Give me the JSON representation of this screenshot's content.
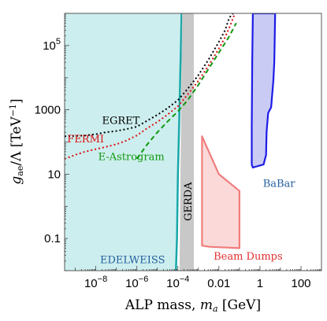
{
  "chart_data": {
    "type": "area",
    "xlabel": "ALP mass, m_a [GeV]",
    "ylabel": "g_ae/Λ [TeV⁻¹]",
    "xscale": "log",
    "yscale": "log",
    "xlim": [
      3e-10,
      1000
    ],
    "ylim": [
      0.01,
      1000000
    ],
    "grid": false,
    "x_ticks": [
      {
        "value": 1e-08,
        "label": "10",
        "exp": "−8"
      },
      {
        "value": 1e-06,
        "label": "10",
        "exp": "−6"
      },
      {
        "value": 0.0001,
        "label": "10",
        "exp": "−4"
      },
      {
        "value": 0.01,
        "label": "0.01",
        "exp": ""
      },
      {
        "value": 1,
        "label": "1",
        "exp": ""
      },
      {
        "value": 100,
        "label": "100",
        "exp": ""
      }
    ],
    "y_ticks": [
      {
        "value": 0.1,
        "label": "0.1",
        "exp": ""
      },
      {
        "value": 10,
        "label": "10",
        "exp": ""
      },
      {
        "value": 1000,
        "label": "1000",
        "exp": ""
      },
      {
        "value": 100000,
        "label": "10",
        "exp": "5"
      }
    ],
    "colors": {
      "edelweiss_fill": "#cdeeee",
      "edelweiss_line": "#17a7a9",
      "gerda_fill": "#c8c8c8",
      "babar_fill": "#c9cbf5",
      "babar_line": "#1c1ce6",
      "beam_fill": "#fbd9d9",
      "beam_line": "#f07d7d",
      "egret": "#000000",
      "fermi": "#dd1111",
      "astro": "#119911"
    },
    "regions": [
      {
        "name": "EDELWEISS",
        "label_x": 1.6e-08,
        "label_y": 0.017,
        "label_color": "#225e9e",
        "points": [
          [
            3e-10,
            0.01
          ],
          [
            3e-10,
            1000000
          ],
          [
            0.00015,
            1000000
          ],
          [
            0.00014,
            100000
          ],
          [
            0.00012,
            1000
          ],
          [
            0.0001,
            10
          ],
          [
            9e-05,
            0.1
          ],
          [
            8e-05,
            0.01
          ]
        ]
      },
      {
        "name": "GERDA",
        "label_x": 0.00045,
        "label_y": 0.35,
        "label_color": "#000000",
        "points": [
          [
            0.00012,
            0.01
          ],
          [
            0.00016,
            1000000
          ],
          [
            0.0006,
            1000000
          ],
          [
            0.0006,
            0.01
          ]
        ]
      },
      {
        "name": "BaBar",
        "label_x": 1.4,
        "label_y": 4,
        "label_color": "#225e9e",
        "points": [
          [
            0.45,
            1000000
          ],
          [
            0.42,
            30000
          ],
          [
            0.41,
            3000
          ],
          [
            0.4,
            300
          ],
          [
            0.4,
            20
          ],
          [
            0.45,
            16
          ],
          [
            0.6,
            17
          ],
          [
            1.5,
            20
          ],
          [
            2,
            40
          ],
          [
            2.1,
            200
          ],
          [
            2.5,
            800
          ],
          [
            3.5,
            1200
          ],
          [
            4.5,
            8000
          ],
          [
            5,
            30000
          ],
          [
            5.5,
            1000000
          ]
        ]
      },
      {
        "name": "Beam Dumps",
        "label_x": 0.0055,
        "label_y": 0.022,
        "label_color": "#e03030",
        "points": [
          [
            0.0015,
            150
          ],
          [
            0.0015,
            0.06
          ],
          [
            0.0035,
            0.055
          ],
          [
            0.1,
            0.05
          ],
          [
            0.1,
            3
          ],
          [
            0.01,
            10
          ]
        ]
      }
    ],
    "series": [
      {
        "name": "EGRET",
        "style": "dotted",
        "label_x": 2e-08,
        "label_y": 370,
        "x": [
          3e-10,
          3e-09,
          1e-08,
          3e-08,
          1e-07,
          3e-07,
          1e-06,
          3e-06,
          1e-05,
          3e-05,
          0.0001,
          0.0003,
          0.001,
          0.003,
          0.01,
          0.02,
          0.03,
          0.04,
          0.05
        ],
        "y": [
          150,
          160,
          175,
          200,
          220,
          250,
          300,
          450,
          700,
          1100,
          2000,
          4500,
          12000,
          35000,
          130000,
          300000,
          650000,
          900000,
          1000000
        ]
      },
      {
        "name": "FERMI",
        "style": "dotted",
        "label_x": 4e-10,
        "label_y": 98,
        "x": [
          3e-10,
          1e-09,
          3e-09,
          1e-08,
          3e-08,
          1e-07,
          3e-07,
          1e-06,
          3e-06,
          1e-05,
          3e-05,
          0.0001,
          0.0003,
          0.001,
          0.003,
          0.01,
          0.02,
          0.04,
          0.06
        ],
        "y": [
          30,
          40,
          50,
          60,
          70,
          85,
          110,
          160,
          260,
          420,
          700,
          1300,
          3000,
          8000,
          23000,
          80000,
          180000,
          500000,
          1000000
        ]
      },
      {
        "name": "E-Astrogram",
        "style": "dashed",
        "label_x": 1.3e-08,
        "label_y": 27,
        "x": [
          1e-06,
          3e-06,
          1e-05,
          3e-05,
          0.0001,
          0.0003,
          0.001,
          0.003,
          0.01,
          0.03,
          0.07
        ],
        "y": [
          30,
          80,
          200,
          420,
          900,
          2000,
          6000,
          18000,
          60000,
          180000,
          500000
        ]
      }
    ]
  }
}
